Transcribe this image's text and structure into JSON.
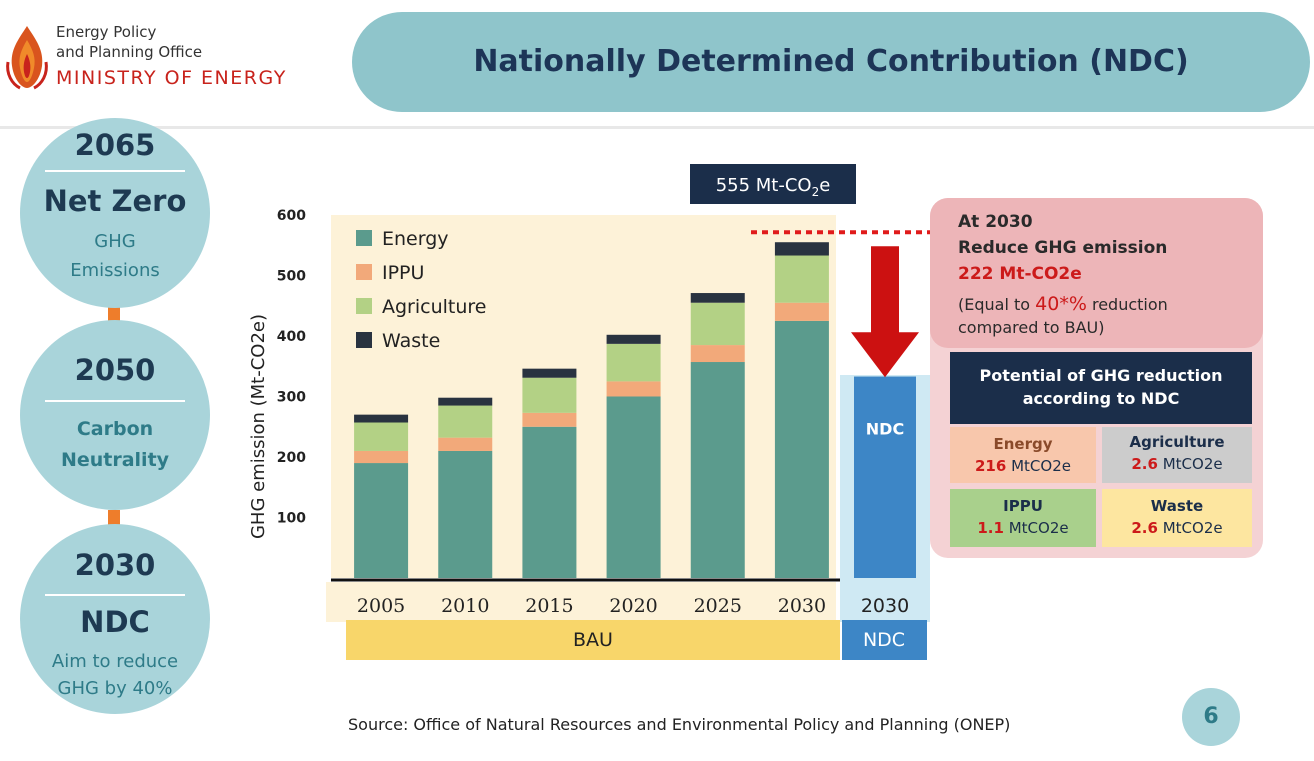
{
  "header": {
    "org_line1": "Energy Policy",
    "org_line2": "and Planning Office",
    "ministry": "MINISTRY OF ENERGY",
    "title": "Nationally Determined Contribution (NDC)"
  },
  "timeline": [
    {
      "year": "2065",
      "headline": "Net Zero",
      "sub1": "GHG",
      "sub2": "Emissions"
    },
    {
      "year": "2050",
      "headline": "",
      "sub1": "Carbon",
      "sub2": "Neutrality"
    },
    {
      "year": "2030",
      "headline": "NDC",
      "sub1": "Aim to reduce",
      "sub2": "GHG by 40%"
    }
  ],
  "chart_data": {
    "type": "bar",
    "stacked": true,
    "ylabel": "GHG emission (Mt-CO2e)",
    "ylim": [
      0,
      600
    ],
    "yticks": [
      100,
      200,
      300,
      400,
      500,
      600
    ],
    "categories": [
      "2005",
      "2010",
      "2015",
      "2020",
      "2025",
      "2030"
    ],
    "series": [
      {
        "name": "Energy",
        "color": "#5b9b8d",
        "values": [
          190,
          210,
          250,
          300,
          357,
          425
        ]
      },
      {
        "name": "IPPU",
        "color": "#f2a97a",
        "values": [
          20,
          22,
          23,
          25,
          28,
          30
        ]
      },
      {
        "name": "Agriculture",
        "color": "#b3d185",
        "values": [
          47,
          53,
          58,
          62,
          70,
          78
        ]
      },
      {
        "name": "Waste",
        "color": "#293340",
        "values": [
          13,
          13,
          15,
          15,
          16,
          22
        ]
      }
    ],
    "bau_label": "BAU",
    "ndc_category": "2030",
    "ndc_bar_label": "NDC",
    "ndc_value": 333,
    "ndc_color": "#3d86c6",
    "ndc_group_label": "NDC",
    "top_label_prefix": "555 Mt-CO",
    "top_label_sub": "2",
    "top_label_suffix": "e"
  },
  "callout": {
    "line1": "At 2030",
    "line2": "Reduce GHG emission",
    "amount": "222 Mt-CO2e",
    "note_prefix": "(Equal to ",
    "note_pct": "40*%",
    "note_suffix": " reduction",
    "note_line2": "compared to BAU)"
  },
  "potential": {
    "heading1": "Potential of GHG reduction",
    "heading2": "according to NDC",
    "cells": [
      {
        "name": "Energy",
        "value": "216",
        "unit": "MtCO2e",
        "color": "#f8c7ac"
      },
      {
        "name": "Agriculture",
        "value": "2.6",
        "unit": "MtCO2e",
        "color": "#cccccc"
      },
      {
        "name": "IPPU",
        "value": "1.1",
        "unit": "MtCO2e",
        "color": "#a9d08c"
      },
      {
        "name": "Waste",
        "value": "2.6",
        "unit": "MtCO2e",
        "color": "#fde6a0"
      }
    ]
  },
  "source": "Source: Office of Natural Resources and Environmental Policy and Planning (ONEP)",
  "page_number": "6"
}
